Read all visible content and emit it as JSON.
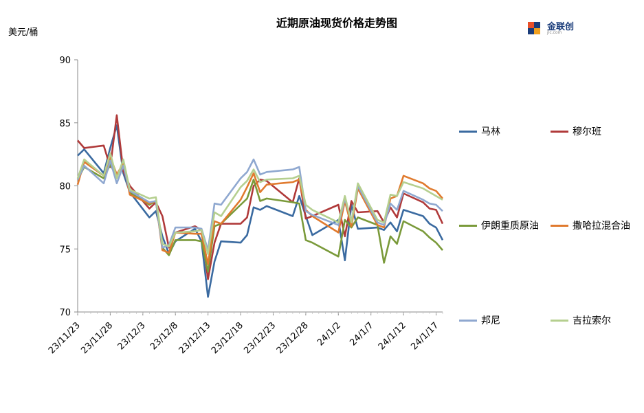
{
  "chart_data": {
    "type": "line",
    "title": "近期原油现货价格走势图",
    "ylabel": "美元/桶",
    "ylim": [
      70,
      90
    ],
    "yticks": [
      70,
      75,
      80,
      85,
      90
    ],
    "xticks": [
      "23/11/23",
      "23/11/28",
      "23/12/3",
      "23/12/8",
      "23/12/13",
      "23/12/18",
      "23/12/23",
      "23/12/28",
      "24/1/2",
      "24/1/7",
      "24/1/12",
      "24/1/17"
    ],
    "x": [
      "2023-11-23",
      "2023-11-24",
      "2023-11-27",
      "2023-11-28",
      "2023-11-29",
      "2023-11-30",
      "2023-12-01",
      "2023-12-04",
      "2023-12-05",
      "2023-12-06",
      "2023-12-07",
      "2023-12-08",
      "2023-12-11",
      "2023-12-12",
      "2023-12-13",
      "2023-12-14",
      "2023-12-15",
      "2023-12-18",
      "2023-12-19",
      "2023-12-20",
      "2023-12-21",
      "2023-12-22",
      "2023-12-26",
      "2023-12-27",
      "2023-12-28",
      "2023-12-29",
      "2024-01-02",
      "2024-01-03",
      "2024-01-04",
      "2024-01-05",
      "2024-01-08",
      "2024-01-09",
      "2024-01-10",
      "2024-01-11",
      "2024-01-12",
      "2024-01-15",
      "2024-01-16",
      "2024-01-17",
      "2024-01-18"
    ],
    "series": [
      {
        "name": "马林",
        "color": "#3a6aa0",
        "values": [
          82.4,
          82.9,
          81.0,
          83.0,
          84.8,
          81.0,
          79.5,
          77.5,
          78.0,
          76.0,
          74.6,
          75.6,
          76.6,
          75.6,
          71.2,
          74.0,
          75.6,
          75.5,
          76.1,
          78.3,
          78.1,
          78.4,
          77.6,
          79.2,
          77.6,
          76.1,
          77.3,
          74.1,
          78.5,
          76.6,
          76.7,
          76.5,
          77.1,
          76.4,
          78.1,
          77.6,
          77.0,
          76.7,
          75.7
        ]
      },
      {
        "name": "穆尔班",
        "color": "#b03a3a",
        "values": [
          83.6,
          83.0,
          83.2,
          81.5,
          85.6,
          81.2,
          80.0,
          78.2,
          78.7,
          77.6,
          75.1,
          76.3,
          76.8,
          76.5,
          72.6,
          75.5,
          77.0,
          77.0,
          77.5,
          80.0,
          80.5,
          80.4,
          78.7,
          80.6,
          77.4,
          77.6,
          78.5,
          76.0,
          78.8,
          77.9,
          78.0,
          77.1,
          78.3,
          77.5,
          79.4,
          78.7,
          78.2,
          78.1,
          77.0
        ]
      },
      {
        "name": "伊朗重质原油",
        "color": "#7a9a3a",
        "values": [
          80.5,
          81.5,
          80.6,
          81.7,
          80.7,
          81.9,
          79.5,
          78.5,
          78.8,
          75.1,
          74.5,
          75.7,
          75.7,
          75.6,
          73.2,
          76.8,
          77.0,
          78.5,
          79.0,
          80.5,
          78.8,
          79.0,
          78.7,
          78.6,
          75.7,
          75.5,
          74.4,
          77.3,
          76.7,
          77.5,
          76.9,
          73.9,
          76.0,
          75.4,
          77.2,
          76.4,
          75.9,
          75.5,
          74.9
        ]
      },
      {
        "name": "撒哈拉混合油",
        "color": "#e07a2e",
        "values": [
          80.1,
          81.9,
          80.8,
          82.3,
          80.9,
          81.8,
          79.3,
          78.6,
          78.8,
          74.9,
          74.7,
          76.3,
          76.2,
          76.2,
          73.8,
          77.2,
          77.0,
          78.9,
          79.9,
          81.0,
          79.5,
          80.1,
          80.3,
          80.5,
          78.1,
          77.6,
          76.3,
          78.8,
          76.8,
          79.8,
          76.9,
          76.7,
          79.0,
          79.2,
          80.8,
          80.2,
          79.8,
          79.6,
          79.0
        ]
      },
      {
        "name": "邦尼",
        "color": "#8fa8d0",
        "values": [
          80.5,
          81.6,
          80.2,
          82.0,
          80.2,
          81.6,
          79.6,
          78.7,
          78.8,
          75.1,
          75.3,
          76.7,
          76.7,
          76.6,
          74.9,
          78.6,
          78.5,
          80.6,
          81.1,
          82.1,
          80.9,
          81.1,
          81.3,
          81.5,
          78.0,
          77.7,
          76.9,
          79.0,
          77.2,
          80.0,
          77.1,
          76.9,
          78.6,
          78.1,
          79.6,
          78.9,
          78.6,
          78.5,
          78.0
        ]
      },
      {
        "name": "吉拉索尔",
        "color": "#b5cf8f",
        "values": [
          80.6,
          82.1,
          80.8,
          82.6,
          80.6,
          82.1,
          79.7,
          79.0,
          79.1,
          75.4,
          75.2,
          76.3,
          76.4,
          76.5,
          74.6,
          77.9,
          77.6,
          79.9,
          80.4,
          81.3,
          80.3,
          80.5,
          80.6,
          80.8,
          78.5,
          78.1,
          77.1,
          79.2,
          77.1,
          80.2,
          77.3,
          77.1,
          79.3,
          79.2,
          80.3,
          79.8,
          79.5,
          79.2,
          78.9
        ]
      }
    ]
  },
  "logo": {
    "text": "金联创",
    "sub": "jlc.com"
  }
}
